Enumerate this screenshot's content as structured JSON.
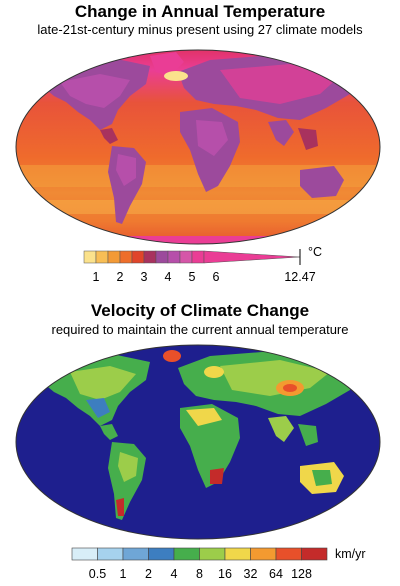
{
  "map1": {
    "title": "Change in Annual Temperature",
    "subtitle": "late-21st-century minus present using 27 climate models",
    "legend": {
      "unit": "°C",
      "colors": [
        "#fbe28c",
        "#f8be55",
        "#f39a36",
        "#ee6e2a",
        "#e0452a",
        "#a8325e",
        "#9c4a9c",
        "#b64faa",
        "#d556a8",
        "#ea3d95"
      ],
      "tick_labels": [
        "1",
        "2",
        "3",
        "4",
        "5",
        "6"
      ],
      "max_label": "12.47"
    }
  },
  "map2": {
    "title": "Velocity of Climate Change",
    "subtitle": "required to maintain the current annual temperature",
    "legend": {
      "unit": "km/yr",
      "colors": [
        "#d8eef8",
        "#a6d2ee",
        "#6fa6d6",
        "#3d7ec0",
        "#46ae4c",
        "#9ccd4a",
        "#f0d74a",
        "#f39a30",
        "#e8502a",
        "#c42b2a"
      ],
      "tick_labels": [
        "0.5",
        "1",
        "2",
        "4",
        "8",
        "16",
        "32",
        "64",
        "128"
      ]
    },
    "ocean_color": "#1e1f8e"
  }
}
